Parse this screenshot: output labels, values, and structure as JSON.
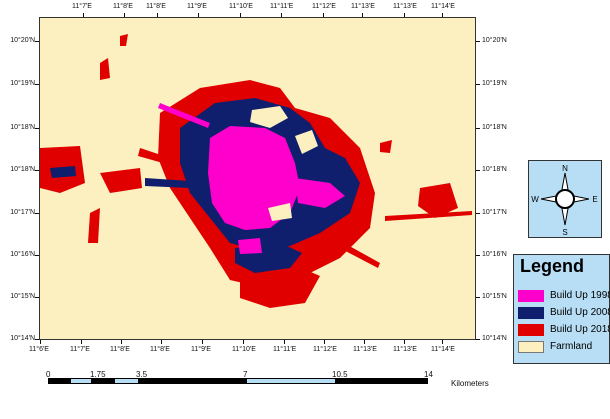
{
  "map": {
    "top_lon_labels": [
      "11°7'E",
      "11°8'E",
      "11°8'E",
      "11°9'E",
      "11°10'E",
      "11°11'E",
      "11°12'E",
      "11°13'E",
      "11°13'E",
      "11°14'E"
    ],
    "bottom_lon_labels": [
      "11°6'E",
      "11°7'E",
      "11°8'E",
      "11°8'E",
      "11°9'E",
      "11°10'E",
      "11°11'E",
      "11°12'E",
      "11°13'E",
      "11°13'E",
      "11°14'E"
    ],
    "left_lat_labels": [
      "10°20'N",
      "10°19'N",
      "10°18'N",
      "10°18'N",
      "10°17'N",
      "10°16'N",
      "10°15'N",
      "10°14'N"
    ],
    "right_lat_labels": [
      "10°20'N",
      "10°19'N",
      "10°18'N",
      "10°18'N",
      "10°17'N",
      "10°16'N",
      "10°15'N",
      "10°14'N"
    ]
  },
  "compass": {
    "north": "N",
    "south": "S",
    "east": "E",
    "west": "W"
  },
  "legend": {
    "title": "Legend",
    "items": [
      {
        "label": "Build Up 1998",
        "color": "#ff00cc"
      },
      {
        "label": "Build Up 2008",
        "color": "#0f1f6e"
      },
      {
        "label": "Build Up 2018",
        "color": "#e00000"
      },
      {
        "label": "Farmland",
        "color": "#fcf0c0"
      }
    ]
  },
  "scale": {
    "labels": [
      "0",
      "1.75",
      "3.5",
      "7",
      "10.5",
      "14"
    ],
    "unit": "Kilometers"
  },
  "colors": {
    "background": "#fcf0c0",
    "build_1998": "#ff00cc",
    "build_2008": "#0f1f6e",
    "build_2018": "#e00000",
    "panel": "#b7def5"
  }
}
